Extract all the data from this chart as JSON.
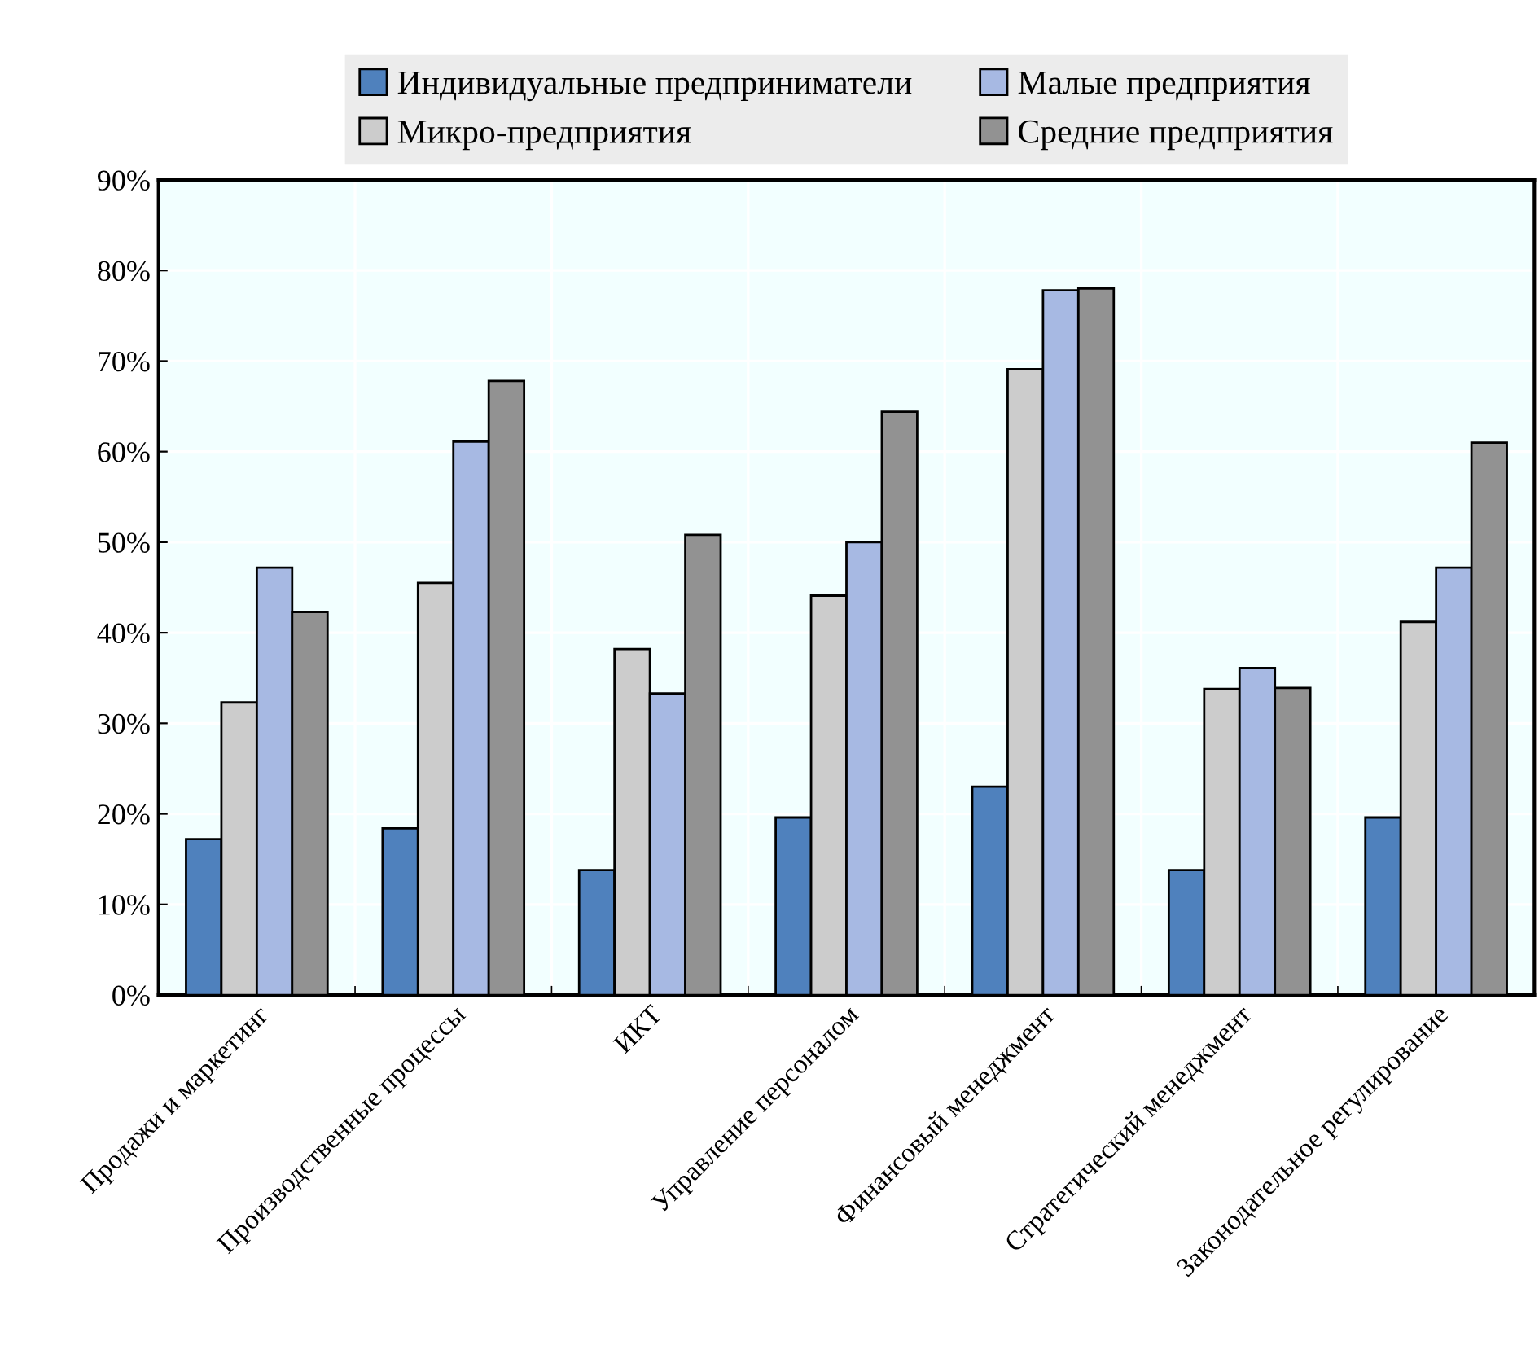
{
  "chart_data": {
    "type": "bar",
    "categories": [
      "Продажи и маркетинг",
      "Производственные процессы",
      "ИКТ",
      "Управление персоналом",
      "Финансовый менеджмент",
      "Стратегический менеджмент",
      "Законодательное регулирование"
    ],
    "series": [
      {
        "name": "Индивидуальные предприниматели",
        "color": "#4f81bd",
        "values": [
          17.2,
          18.4,
          13.8,
          19.6,
          23.0,
          13.8,
          19.6
        ]
      },
      {
        "name": "Микро-предприятия",
        "color": "#cccccc",
        "values": [
          32.3,
          45.5,
          38.2,
          44.1,
          69.1,
          33.8,
          41.2
        ]
      },
      {
        "name": "Малые предприятия",
        "color": "#a7b9e3",
        "values": [
          47.2,
          61.1,
          33.3,
          50.0,
          77.8,
          36.1,
          47.2
        ]
      },
      {
        "name": "Средние предприятия",
        "color": "#929292",
        "values": [
          42.3,
          67.8,
          50.8,
          64.4,
          78.0,
          33.9,
          61.0
        ]
      }
    ],
    "ylim": [
      0,
      90
    ],
    "yticks": [
      {
        "value": 0,
        "label": "0%"
      },
      {
        "value": 10,
        "label": "10%"
      },
      {
        "value": 20,
        "label": "20%"
      },
      {
        "value": 30,
        "label": "30%"
      },
      {
        "value": 40,
        "label": "40%"
      },
      {
        "value": 50,
        "label": "50%"
      },
      {
        "value": 60,
        "label": "60%"
      },
      {
        "value": 70,
        "label": "70%"
      },
      {
        "value": 80,
        "label": "80%"
      },
      {
        "value": 90,
        "label": "90%"
      }
    ],
    "grid": true,
    "legend": "top"
  }
}
